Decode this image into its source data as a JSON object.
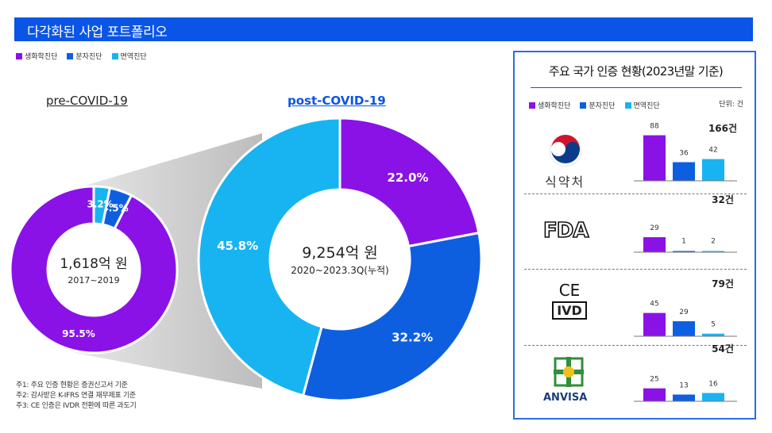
{
  "header": {
    "title": "다각화된 사업 포트폴리오"
  },
  "legend": [
    {
      "label": "생화학진단",
      "color": "#8a12e6"
    },
    {
      "label": "분자진단",
      "color": "#0d5fe0"
    },
    {
      "label": "면역진단",
      "color": "#18b4f2"
    }
  ],
  "colors": {
    "accent": "#0a55e6",
    "purple": "#8a12e6",
    "blue": "#0d5fe0",
    "sky": "#18b4f2"
  },
  "chart_data": [
    {
      "type": "pie",
      "title": "pre-COVID-19",
      "center_value": "1,618억 원",
      "center_sub": "2017~2019",
      "categories": [
        "생화학진단",
        "분자진단",
        "면역진단"
      ],
      "values": [
        95.5,
        4.5,
        3.2
      ],
      "labels": [
        "95.5%",
        "4.5%",
        "3.2%"
      ]
    },
    {
      "type": "pie",
      "title": "post-COVID-19",
      "center_value": "9,254억 원",
      "center_sub": "2020~2023.3Q(누적)",
      "categories": [
        "생화학진단",
        "분자진단",
        "면역진단"
      ],
      "values": [
        22.0,
        32.2,
        45.8
      ],
      "labels": [
        "22.0%",
        "32.2%",
        "45.8%"
      ]
    },
    {
      "type": "bar",
      "title": "주요 국가 인증 현황(2023년말 기준)",
      "unit": "단위: 건",
      "categories": [
        "식약처",
        "FDA",
        "CE IVD",
        "ANVISA"
      ],
      "series": [
        {
          "name": "생화학진단",
          "values": [
            88,
            29,
            45,
            25
          ]
        },
        {
          "name": "분자진단",
          "values": [
            36,
            1,
            29,
            13
          ]
        },
        {
          "name": "면역진단",
          "values": [
            42,
            2,
            5,
            16
          ]
        }
      ],
      "totals": [
        "166건",
        "32건",
        "79건",
        "54건"
      ],
      "ymax": 95
    }
  ],
  "notes": [
    "주1: 주요 인증 현황은 증권신고서 기준",
    "주2: 감사받은 K-IFRS 연결 재무제표 기준",
    "주3: CE 인증은 IVDR 전환에 따른 과도기"
  ],
  "logos": {
    "mfds": {
      "text": "식약처",
      "icon": "mfds-taegeuk-logo"
    },
    "fda": {
      "text": "FDA",
      "icon": "fda-logo"
    },
    "ce": {
      "text_top": "CE",
      "text_bottom": "IVD",
      "icon": "ce-ivd-logo"
    },
    "anvisa": {
      "text": "ANVISA",
      "icon": "anvisa-logo"
    }
  }
}
